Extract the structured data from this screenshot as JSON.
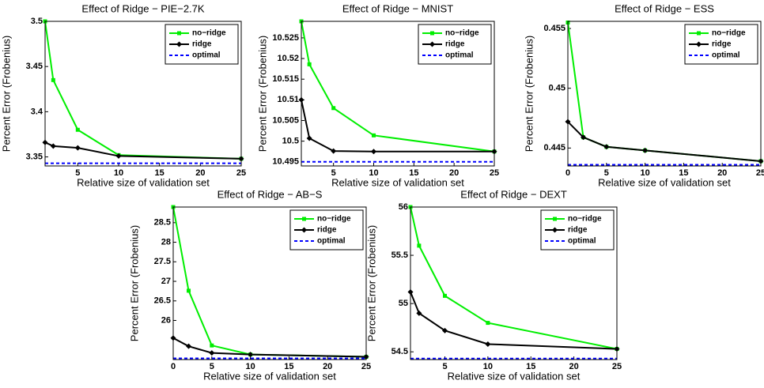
{
  "chart_data": [
    {
      "type": "line",
      "title": "Effect of Ridge − PIE−2.7K",
      "xlabel": "Relative size of validation set",
      "ylabel": "Percent Error (Frobenius)",
      "x": [
        1,
        2,
        5,
        10,
        25
      ],
      "xlim": [
        1,
        25
      ],
      "xticks": [
        5,
        10,
        15,
        20,
        25
      ],
      "ylim": [
        3.34,
        3.5
      ],
      "yticks": [
        3.35,
        3.4,
        3.45,
        3.5
      ],
      "legend": "upper right",
      "series": [
        {
          "name": "no−ridge",
          "color": "#00ee00",
          "marker": "square",
          "dash": false,
          "values": [
            3.5,
            3.435,
            3.38,
            3.352,
            3.348
          ]
        },
        {
          "name": "ridge",
          "color": "#000000",
          "marker": "diamond",
          "dash": false,
          "values": [
            3.366,
            3.362,
            3.36,
            3.351,
            3.348
          ]
        },
        {
          "name": "optimal",
          "color": "#0000ff",
          "marker": "none",
          "dash": true,
          "values": [
            3.343,
            3.343,
            3.343,
            3.343,
            3.343
          ]
        }
      ]
    },
    {
      "type": "line",
      "title": "Effect of Ridge − MNIST",
      "xlabel": "Relative size of validation set",
      "ylabel": "Percent Error (Frobenius)",
      "x": [
        1,
        2,
        5,
        10,
        25
      ],
      "xlim": [
        1,
        25
      ],
      "xticks": [
        5,
        10,
        15,
        20,
        25
      ],
      "ylim": [
        10.494,
        10.529
      ],
      "yticks": [
        10.495,
        10.5,
        10.505,
        10.51,
        10.515,
        10.52,
        10.525
      ],
      "legend": "upper right",
      "series": [
        {
          "name": "no−ridge",
          "color": "#00ee00",
          "marker": "square",
          "dash": false,
          "values": [
            10.529,
            10.5186,
            10.508,
            10.5014,
            10.4975
          ]
        },
        {
          "name": "ridge",
          "color": "#000000",
          "marker": "diamond",
          "dash": false,
          "values": [
            10.51,
            10.5007,
            10.4976,
            10.4975,
            10.4975
          ]
        },
        {
          "name": "optimal",
          "color": "#0000ff",
          "marker": "none",
          "dash": true,
          "values": [
            10.495,
            10.495,
            10.495,
            10.495,
            10.495
          ]
        }
      ]
    },
    {
      "type": "line",
      "title": "Effect of Ridge − ESS",
      "xlabel": "Relative size of validation set",
      "ylabel": "Percent Error (Frobenius)",
      "x": [
        0,
        2,
        5,
        10,
        25
      ],
      "xlim": [
        0,
        25
      ],
      "xticks": [
        0,
        5,
        10,
        15,
        20,
        25
      ],
      "ylim": [
        0.4435,
        0.4556
      ],
      "yticks": [
        0.445,
        0.45,
        0.455
      ],
      "legend": "upper right",
      "series": [
        {
          "name": "no−ridge",
          "color": "#00ee00",
          "marker": "square",
          "dash": false,
          "values": [
            0.4555,
            0.4459,
            0.4451,
            0.4448,
            0.4439
          ]
        },
        {
          "name": "ridge",
          "color": "#000000",
          "marker": "diamond",
          "dash": false,
          "values": [
            0.4472,
            0.4459,
            0.4451,
            0.4448,
            0.4439
          ]
        },
        {
          "name": "optimal",
          "color": "#0000ff",
          "marker": "none",
          "dash": true,
          "values": [
            0.4436,
            0.4436,
            0.4436,
            0.4436,
            0.4436
          ]
        }
      ]
    },
    {
      "type": "line",
      "title": "Effect of Ridge − AB−S",
      "xlabel": "Relative size of validation set",
      "ylabel": "Percent Error (Frobenius)",
      "x": [
        0,
        2,
        5,
        10,
        25
      ],
      "xlim": [
        0,
        25
      ],
      "xticks": [
        0,
        5,
        10,
        15,
        20,
        25
      ],
      "ylim": [
        25,
        28.9
      ],
      "yticks": [
        26,
        26.5,
        27,
        27.5,
        28,
        28.5
      ],
      "legend": "upper right",
      "series": [
        {
          "name": "no−ridge",
          "color": "#00ee00",
          "marker": "square",
          "dash": false,
          "values": [
            28.9,
            26.76,
            25.36,
            25.13,
            25.07
          ]
        },
        {
          "name": "ridge",
          "color": "#000000",
          "marker": "diamond",
          "dash": false,
          "values": [
            25.55,
            25.34,
            25.17,
            25.13,
            25.07
          ]
        },
        {
          "name": "optimal",
          "color": "#0000ff",
          "marker": "none",
          "dash": true,
          "values": [
            25.03,
            25.03,
            25.03,
            25.03,
            25.03
          ]
        }
      ]
    },
    {
      "type": "line",
      "title": "Effect of Ridge − DEXT",
      "xlabel": "Relative size of validation set",
      "ylabel": "Percent Error (Frobenius)",
      "x": [
        1,
        2,
        5,
        10,
        25
      ],
      "xlim": [
        1,
        25
      ],
      "xticks": [
        5,
        10,
        15,
        20,
        25
      ],
      "ylim": [
        54.42,
        56
      ],
      "yticks": [
        54.5,
        55,
        55.5,
        56
      ],
      "legend": "upper right",
      "series": [
        {
          "name": "no−ridge",
          "color": "#00ee00",
          "marker": "square",
          "dash": false,
          "values": [
            56,
            55.6,
            55.08,
            54.8,
            54.53
          ]
        },
        {
          "name": "ridge",
          "color": "#000000",
          "marker": "diamond",
          "dash": false,
          "values": [
            55.12,
            54.9,
            54.72,
            54.58,
            54.53
          ]
        },
        {
          "name": "optimal",
          "color": "#0000ff",
          "marker": "none",
          "dash": true,
          "values": [
            54.43,
            54.43,
            54.43,
            54.43,
            54.43
          ]
        }
      ]
    }
  ]
}
